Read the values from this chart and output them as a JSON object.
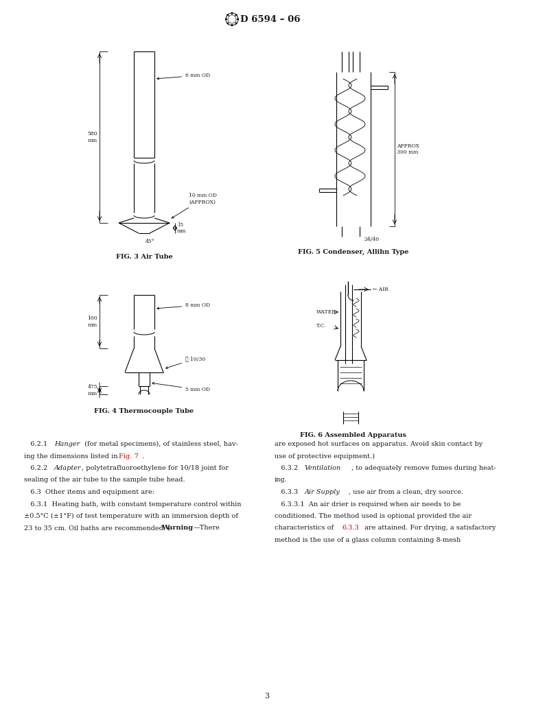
{
  "page_width": 7.78,
  "page_height": 10.41,
  "dpi": 100,
  "bg_color": "#ffffff",
  "text_color": "#1a1a1a",
  "red_color": "#cc0000",
  "fig3_caption": "FIG. 3 Air Tube",
  "fig4_caption": "FIG. 4 Thermocouple Tube",
  "fig5_caption": "FIG. 5 Condenser, Allihn Type",
  "fig6_caption": "FIG. 6 Assembled Apparatus",
  "header": "D 6594 – 06",
  "page_number": "3"
}
